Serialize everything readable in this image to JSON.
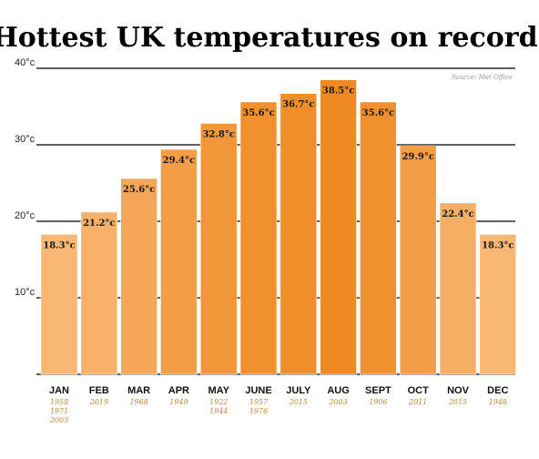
{
  "chart_data": {
    "type": "bar",
    "title": "Hottest UK temperatures on record",
    "source": "Source: Met Office",
    "categories": [
      "JAN",
      "FEB",
      "MAR",
      "APR",
      "MAY",
      "JUNE",
      "JULY",
      "AUG",
      "SEPT",
      "OCT",
      "NOV",
      "DEC"
    ],
    "values": [
      18.3,
      21.2,
      25.6,
      29.4,
      32.8,
      35.6,
      36.7,
      38.5,
      35.6,
      29.9,
      22.4,
      18.3
    ],
    "value_labels": [
      "18.3°c",
      "21.2°c",
      "25.6°c",
      "29.4°c",
      "32.8°c",
      "35.6°c",
      "36.7°c",
      "38.5°c",
      "35.6°c",
      "29.9°c",
      "22.4°c",
      "18.3°c"
    ],
    "years": [
      [
        "1958",
        "1971",
        "2003"
      ],
      [
        "2019"
      ],
      [
        "1968"
      ],
      [
        "1949"
      ],
      [
        "1922",
        "1944"
      ],
      [
        "1957",
        "1976"
      ],
      [
        "2015"
      ],
      [
        "2003"
      ],
      [
        "1906"
      ],
      [
        "2011"
      ],
      [
        "2015"
      ],
      [
        "1948"
      ]
    ],
    "y_ticks": [
      10,
      20,
      30,
      40
    ],
    "y_tick_labels": [
      "10°c",
      "20°c",
      "30°c",
      "40°c"
    ],
    "ylim": [
      0,
      40
    ],
    "grid": true,
    "colors": {
      "low": "#f8b775",
      "high": "#ef8a22",
      "value_text": "#1a1a1a",
      "year_text": "#c08a3a",
      "gridline": "#000000"
    }
  }
}
